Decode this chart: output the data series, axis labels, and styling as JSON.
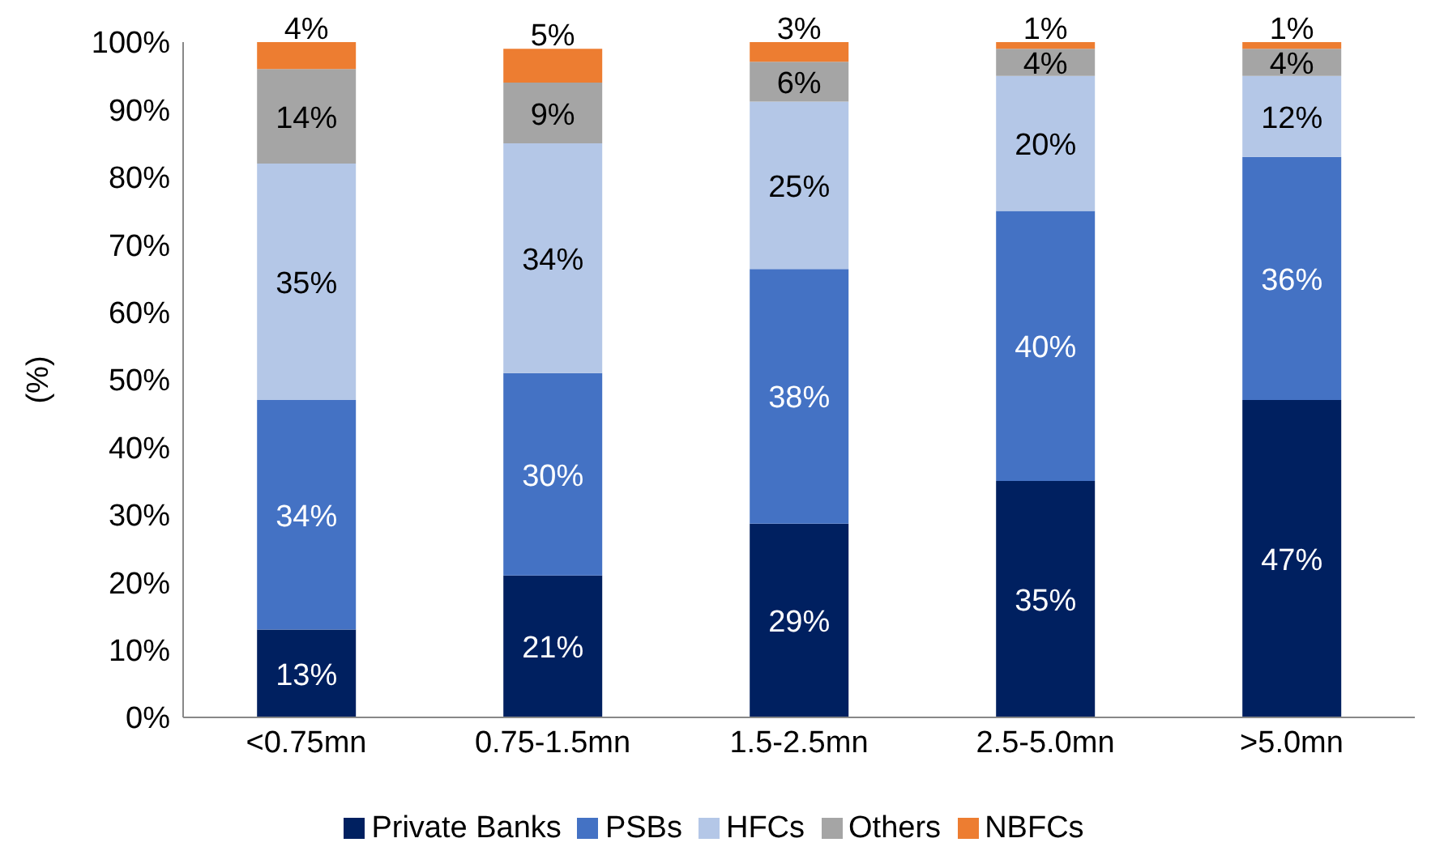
{
  "chart_data": {
    "type": "bar",
    "stacked": true,
    "ylabel": "(%)",
    "categories": [
      "<0.75mn",
      "0.75-1.5mn",
      "1.5-2.5mn",
      "2.5-5.0mn",
      ">5.0mn"
    ],
    "series": [
      {
        "name": "Private Banks",
        "color": "#002060",
        "values": [
          13,
          21,
          28.7,
          35,
          47
        ],
        "value_labels": [
          "13%",
          "21%",
          "29%",
          "35%",
          "47%"
        ]
      },
      {
        "name": "PSBs",
        "color": "#4472c4",
        "values": [
          34,
          30,
          37.7,
          40,
          36
        ],
        "value_labels": [
          "34%",
          "30%",
          "38%",
          "40%",
          "36%"
        ]
      },
      {
        "name": "HFCs",
        "color": "#b4c7e7",
        "values": [
          35,
          34,
          24.8,
          20,
          12
        ],
        "value_labels": [
          "35%",
          "34%",
          "25%",
          "20%",
          "12%"
        ]
      },
      {
        "name": "Others",
        "color": "#a5a5a5",
        "values": [
          14,
          9,
          5.9,
          4,
          4
        ],
        "value_labels": [
          "14%",
          "9%",
          "6%",
          "4%",
          "4%"
        ]
      },
      {
        "name": "NBFCs",
        "color": "#ed7d31",
        "values": [
          4,
          5,
          2.9,
          1,
          1
        ],
        "value_labels": [
          "4%",
          "5%",
          "3%",
          "1%",
          "1%"
        ]
      }
    ],
    "ylim": [
      0,
      100
    ],
    "yticks": [
      {
        "value": 0,
        "label": "0%"
      },
      {
        "value": 10,
        "label": "10%"
      },
      {
        "value": 20,
        "label": "20%"
      },
      {
        "value": 30,
        "label": "30%"
      },
      {
        "value": 40,
        "label": "40%"
      },
      {
        "value": 50,
        "label": "50%"
      },
      {
        "value": 60,
        "label": "60%"
      },
      {
        "value": 70,
        "label": "70%"
      },
      {
        "value": 80,
        "label": "80%"
      },
      {
        "value": 90,
        "label": "90%"
      },
      {
        "value": 100,
        "label": "100%"
      }
    ],
    "grid": false,
    "legend": "bottom"
  }
}
